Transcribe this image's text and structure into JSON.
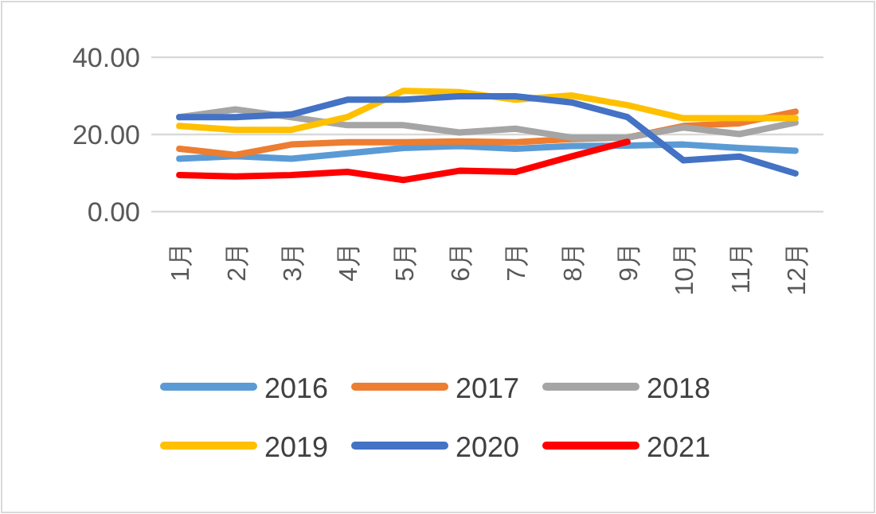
{
  "chart_data": {
    "type": "line",
    "categories": [
      "1月",
      "2月",
      "3月",
      "4月",
      "5月",
      "6月",
      "7月",
      "8月",
      "9月",
      "10月",
      "11月",
      "12月"
    ],
    "ylim": [
      0,
      40
    ],
    "yticks": [
      {
        "value": 0,
        "label": "0.00"
      },
      {
        "value": 20,
        "label": "20.00"
      },
      {
        "value": 40,
        "label": "40.00"
      }
    ],
    "grid": "y",
    "legend": "bottom",
    "series": [
      {
        "name": "2016",
        "color": "#5b9bd5",
        "values": [
          13.7,
          14.4,
          13.7,
          15.1,
          16.5,
          17.0,
          16.3,
          17.0,
          17.1,
          17.4,
          16.5,
          15.8
        ]
      },
      {
        "name": "2017",
        "color": "#ed7d31",
        "values": [
          16.3,
          14.7,
          17.4,
          18.0,
          18.0,
          18.2,
          18.0,
          18.8,
          19.2,
          22.2,
          22.9,
          25.9
        ]
      },
      {
        "name": "2018",
        "color": "#a5a5a5",
        "values": [
          24.5,
          26.5,
          24.5,
          22.4,
          22.4,
          20.5,
          21.5,
          19.2,
          19.2,
          21.8,
          20.1,
          23.1
        ]
      },
      {
        "name": "2019",
        "color": "#ffc000",
        "values": [
          22.2,
          21.2,
          21.2,
          24.5,
          31.3,
          31.0,
          29.0,
          30.1,
          27.6,
          24.2,
          24.2,
          24.2
        ]
      },
      {
        "name": "2020",
        "color": "#4472c4",
        "values": [
          24.5,
          24.5,
          25.2,
          29.0,
          29.0,
          29.9,
          29.9,
          28.3,
          24.5,
          13.3,
          14.3,
          9.9
        ]
      },
      {
        "name": "2021",
        "color": "#ff0000",
        "values": [
          9.5,
          9.1,
          9.5,
          10.3,
          8.2,
          10.6,
          10.3,
          14.3,
          18.1,
          null,
          null,
          null
        ]
      }
    ]
  }
}
